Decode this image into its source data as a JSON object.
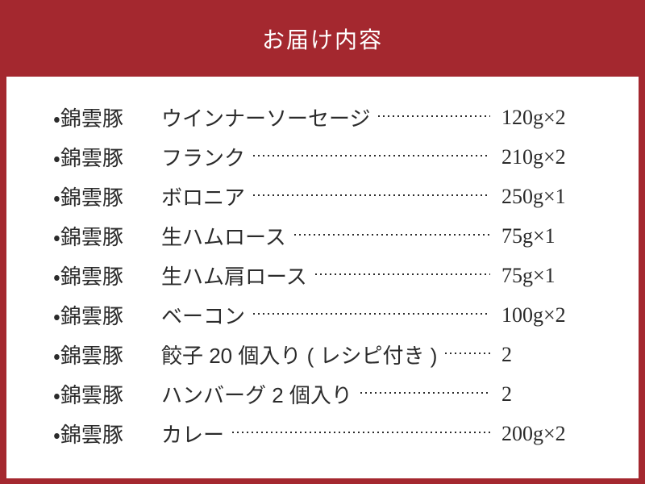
{
  "title": "お届け内容",
  "bullet_char": "・",
  "colors": {
    "background": "#A4282F",
    "panel": "#FFFFFF",
    "text": "#2B2B2B",
    "title_text": "#FFFFFF"
  },
  "items": [
    {
      "brand": "錦雲豚",
      "name": "ウインナーソーセージ",
      "qty": "120g×2"
    },
    {
      "brand": "錦雲豚",
      "name": "フランク",
      "qty": "210g×2"
    },
    {
      "brand": "錦雲豚",
      "name": "ボロニア",
      "qty": "250g×1"
    },
    {
      "brand": "錦雲豚",
      "name": "生ハムロース",
      "qty": "75g×1"
    },
    {
      "brand": "錦雲豚",
      "name": "生ハム肩ロース",
      "qty": "75g×1"
    },
    {
      "brand": "錦雲豚",
      "name": "ベーコン",
      "qty": "100g×2"
    },
    {
      "brand": "錦雲豚",
      "name": "餃子 20 個入り ( レシピ付き )",
      "qty": "2"
    },
    {
      "brand": "錦雲豚",
      "name": "ハンバーグ 2 個入り",
      "qty": "2"
    },
    {
      "brand": "錦雲豚",
      "name": "カレー",
      "qty": "200g×2"
    }
  ]
}
